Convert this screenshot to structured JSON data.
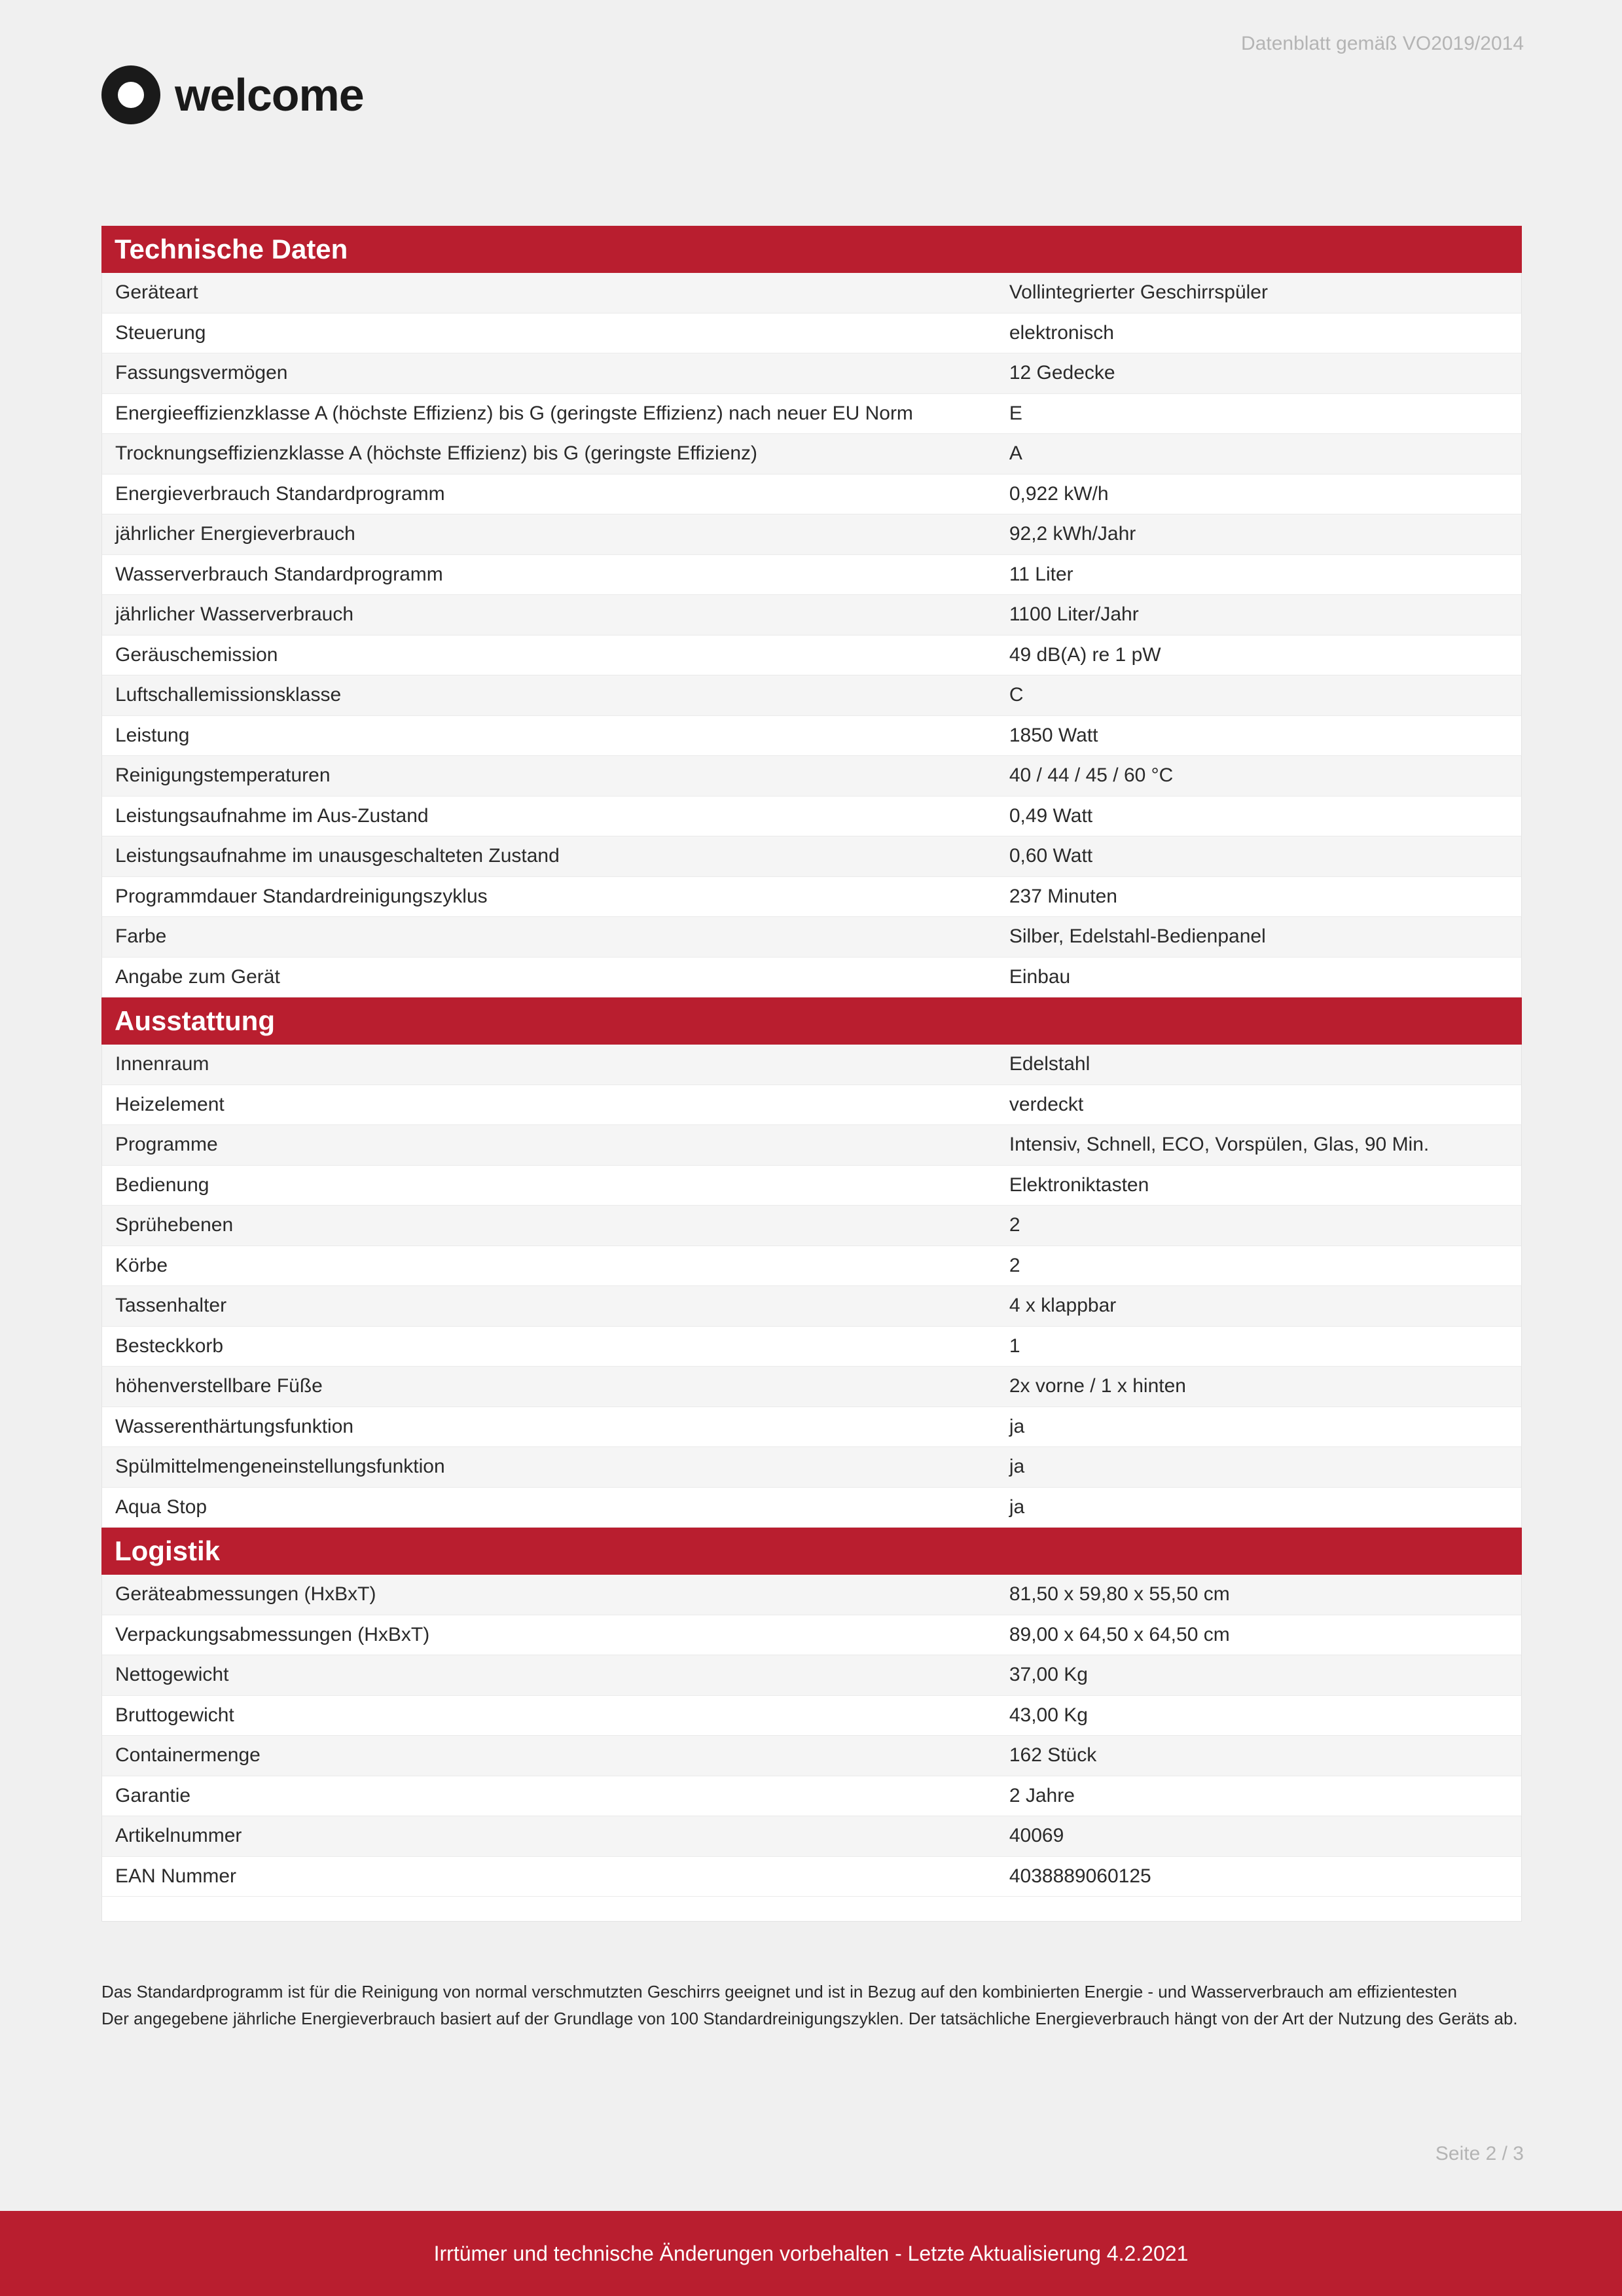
{
  "meta": {
    "top_note": "Datenblatt gemäß VO2019/2014",
    "brand": "welcome",
    "page_label": "Seite 2 / 3",
    "footer_text": "Irrtümer und technische Änderungen vorbehalten - Letzte Aktualisierung 4.2.2021"
  },
  "colors": {
    "header_bg": "#b91e2f",
    "header_text": "#ffffff",
    "page_bg": "#f0f0f0",
    "row_odd": "#f5f5f5",
    "row_even": "#ffffff",
    "muted_text": "#b4b4b4",
    "body_text": "#2a2a2a",
    "border": "#e3e3e3"
  },
  "typography": {
    "section_head_size": 42,
    "row_size": 30,
    "footnote_size": 26,
    "brand_size": 70
  },
  "sections": [
    {
      "title": "Technische Daten",
      "rows": [
        {
          "label": "Geräteart",
          "value": "Vollintegrierter Geschirrspüler"
        },
        {
          "label": "Steuerung",
          "value": "elektronisch"
        },
        {
          "label": "Fassungsvermögen",
          "value": "12 Gedecke"
        },
        {
          "label": "Energieeffizienzklasse A (höchste Effizienz) bis G (geringste Effizienz) nach neuer EU Norm",
          "value": "E"
        },
        {
          "label": "Trocknungseffizienzklasse A (höchste Effizienz) bis G (geringste Effizienz)",
          "value": "A"
        },
        {
          "label": "Energieverbrauch Standardprogramm",
          "value": "0,922 kW/h"
        },
        {
          "label": "jährlicher Energieverbrauch",
          "value": "92,2 kWh/Jahr"
        },
        {
          "label": "Wasserverbrauch Standardprogramm",
          "value": "11 Liter"
        },
        {
          "label": "jährlicher Wasserverbrauch",
          "value": "1100 Liter/Jahr"
        },
        {
          "label": "Geräuschemission",
          "value": "49 dB(A) re 1 pW"
        },
        {
          "label": "Luftschallemissionsklasse",
          "value": "C"
        },
        {
          "label": "Leistung",
          "value": "1850 Watt"
        },
        {
          "label": "Reinigungstemperaturen",
          "value": "40 / 44 / 45 / 60 °C"
        },
        {
          "label": "Leistungsaufnahme im Aus-Zustand",
          "value": "0,49 Watt"
        },
        {
          "label": "Leistungsaufnahme im unausgeschalteten Zustand",
          "value": "0,60 Watt"
        },
        {
          "label": "Programmdauer Standardreinigungszyklus",
          "value": "237 Minuten"
        },
        {
          "label": "Farbe",
          "value": "Silber,  Edelstahl-Bedienpanel"
        },
        {
          "label": "Angabe zum Gerät",
          "value": "Einbau"
        }
      ]
    },
    {
      "title": "Ausstattung",
      "rows": [
        {
          "label": "Innenraum",
          "value": "Edelstahl"
        },
        {
          "label": "Heizelement",
          "value": "verdeckt"
        },
        {
          "label": "Programme",
          "value": "Intensiv,  Schnell,  ECO,  Vorspülen,  Glas,  90 Min."
        },
        {
          "label": "Bedienung",
          "value": "Elektroniktasten"
        },
        {
          "label": "Sprühebenen",
          "value": "2"
        },
        {
          "label": "Körbe",
          "value": "2"
        },
        {
          "label": "Tassenhalter",
          "value": "4 x klappbar"
        },
        {
          "label": "Besteckkorb",
          "value": "1"
        },
        {
          "label": "höhenverstellbare Füße",
          "value": "2x vorne / 1 x hinten"
        },
        {
          "label": "Wasserenthärtungsfunktion",
          "value": "ja"
        },
        {
          "label": "Spülmittelmengeneinstellungsfunktion",
          "value": "ja"
        },
        {
          "label": "Aqua Stop",
          "value": "ja"
        }
      ]
    },
    {
      "title": "Logistik",
      "rows": [
        {
          "label": "Geräteabmessungen (HxBxT)",
          "value": "81,50 x 59,80 x 55,50 cm"
        },
        {
          "label": "Verpackungsabmessungen (HxBxT)",
          "value": "89,00 x 64,50 x 64,50 cm"
        },
        {
          "label": "Nettogewicht",
          "value": "37,00 Kg"
        },
        {
          "label": "Bruttogewicht",
          "value": "43,00 Kg"
        },
        {
          "label": "Containermenge",
          "value": "162 Stück"
        },
        {
          "label": "Garantie",
          "value": "2 Jahre"
        },
        {
          "label": "Artikelnummer",
          "value": "40069"
        },
        {
          "label": "EAN Nummer",
          "value": "4038889060125"
        }
      ]
    }
  ],
  "footnotes": [
    "Das Standardprogramm ist für die Reinigung von normal verschmutzten Geschirrs geeignet und ist in Bezug auf den kombinierten Energie - und Wasserverbrauch am effizientesten",
    "Der angegebene jährliche Energieverbrauch basiert auf der Grundlage von 100 Standardreinigungszyklen. Der tatsächliche Energieverbrauch hängt von der Art der Nutzung des Geräts ab."
  ]
}
